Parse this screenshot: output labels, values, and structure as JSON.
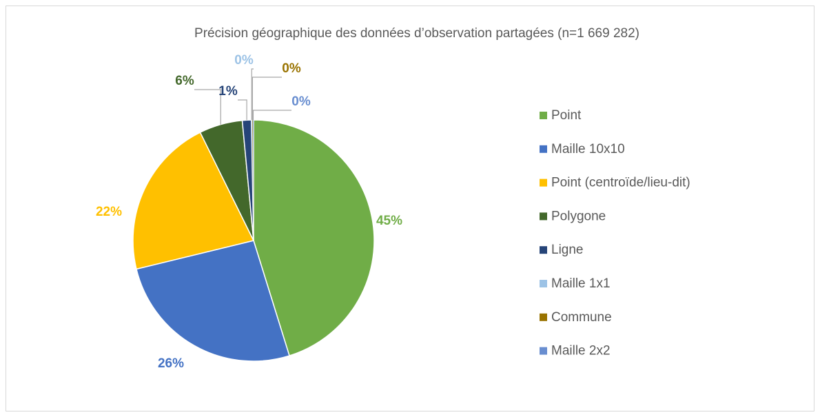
{
  "chart_data": {
    "type": "pie",
    "title": "Précision géographique des données d’observation partagées (n=1 669 282)",
    "categories": [
      "Point",
      "Maille 10x10",
      "Point (centroïde/lieu-dit)",
      "Polygone",
      "Ligne",
      "Maille 1x1",
      "Commune",
      "Maille 2x2"
    ],
    "values": [
      45.2,
      26.0,
      21.5,
      5.8,
      1.2,
      0.1,
      0.1,
      0.1
    ],
    "value_labels": [
      "45%",
      "26%",
      "22%",
      "6%",
      "1%",
      "0%",
      "0%",
      "0%"
    ],
    "colors": [
      "#70ad47",
      "#4472c4",
      "#ffc000",
      "#43682b",
      "#264478",
      "#9dc3e6",
      "#997300",
      "#698ed0"
    ],
    "legend": "right"
  }
}
